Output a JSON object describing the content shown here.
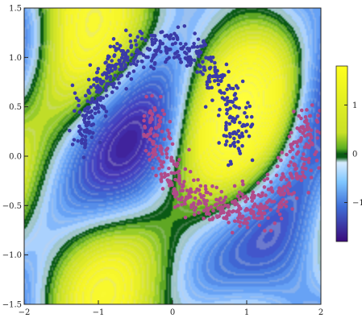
{
  "chart_data": {
    "type": "scatter",
    "title": "",
    "xlabel": "",
    "ylabel": "",
    "xlim": [
      -2,
      2
    ],
    "ylim": [
      -1.5,
      1.5
    ],
    "x_ticks": [
      -2,
      -1,
      0,
      1,
      2
    ],
    "x_tick_labels": [
      "−2",
      "−1",
      "0",
      "1",
      "2"
    ],
    "y_ticks": [
      -1.5,
      -1.0,
      -0.5,
      0.0,
      0.5,
      1.0,
      1.5
    ],
    "y_tick_labels": [
      "−1.5",
      "−1.0",
      "−0.5",
      "0.0",
      "0.5",
      "1.0",
      "1.5"
    ],
    "background": "filled contour plot of a decision function",
    "colorbar": {
      "range": [
        -1.8,
        1.8
      ],
      "ticks": [
        1,
        0,
        -1
      ],
      "tick_labels": [
        "1",
        "0",
        "−1"
      ],
      "colors": {
        "high": "#ffff1e",
        "mid_positive": "#8fcd28",
        "zero_band": "#0a5a14",
        "mid_negative": "#7fc6ff",
        "low": "#3a0a7a"
      }
    },
    "series": [
      {
        "shape": "upper crescent (two moons, class A)",
        "color": "#3a3aa8",
        "arc_center": [
          -0.0,
          0.0
        ],
        "points_approx": 500
      },
      {
        "shape": "lower crescent (two moons, class B)",
        "color": "#b04a8a",
        "arc_center": [
          1.0,
          0.5
        ],
        "points_approx": 500
      }
    ]
  }
}
